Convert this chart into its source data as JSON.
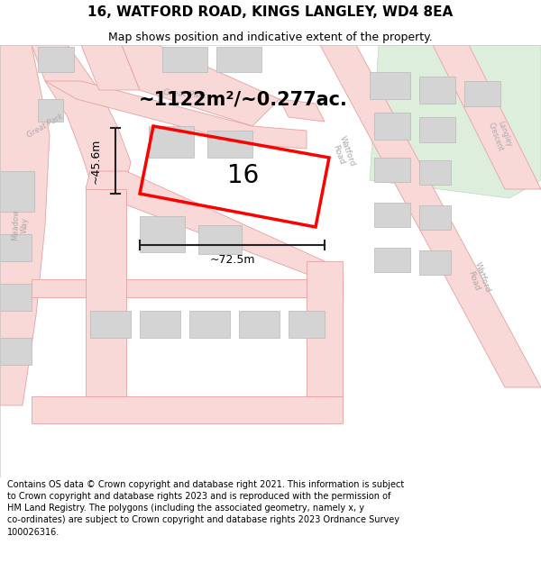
{
  "title": "16, WATFORD ROAD, KINGS LANGLEY, WD4 8EA",
  "subtitle": "Map shows position and indicative extent of the property.",
  "area_text": "~1122m²/~0.277ac.",
  "label_16": "16",
  "dim_width": "~72.5m",
  "dim_height": "~45.6m",
  "footer": "Contains OS data © Crown copyright and database right 2021. This information is subject to Crown copyright and database rights 2023 and is reproduced with the permission of HM Land Registry. The polygons (including the associated geometry, namely x, y co-ordinates) are subject to Crown copyright and database rights 2023 Ordnance Survey 100026316.",
  "bg_white": "#ffffff",
  "road_fill": "#f9d8d8",
  "road_edge": "#e8a0a0",
  "build_fill": "#d4d4d4",
  "build_edge": "#b8b8b8",
  "green_fill": "#ddeedd",
  "green_edge": "#c0d8c0",
  "prop_color": "#ff0000",
  "dim_color": "#222222",
  "label_color": "#aaaaaa",
  "title_fontsize": 11,
  "subtitle_fontsize": 9,
  "footer_fontsize": 7.0
}
